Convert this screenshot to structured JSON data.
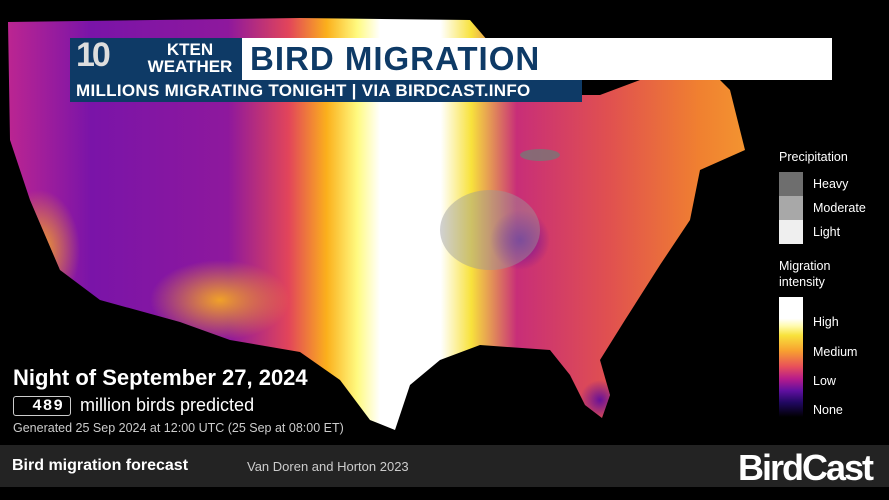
{
  "header": {
    "logo_number": "10",
    "logo_station": "KTEN",
    "logo_text_line1": "KTEN",
    "logo_text_line2": "WEATHER",
    "title": "BIRD MIGRATION",
    "subtitle": "MILLIONS MIGRATING TONIGHT | VIA BIRDCAST.INFO"
  },
  "forecast": {
    "night": "Night of September 27, 2024",
    "count": "489",
    "count_label": "million birds predicted",
    "generated": "Generated 25 Sep 2024 at 12:00 UTC (25 Sep at 08:00 ET)"
  },
  "legend": {
    "precip_title": "Precipitation",
    "precip": [
      {
        "label": "Heavy",
        "color": "#6e6e6e"
      },
      {
        "label": "Moderate",
        "color": "#a8a8a8"
      },
      {
        "label": "Light",
        "color": "#efefef"
      }
    ],
    "intensity_title_1": "Migration",
    "intensity_title_2": "intensity",
    "intensity": [
      "High",
      "Medium",
      "Low",
      "None"
    ]
  },
  "footer": {
    "title": "Bird migration forecast",
    "citation": "Van Doren and Horton 2023",
    "brand": "BirdCast"
  },
  "colors": {
    "banner_blue": "#0e3a66",
    "footer_bg": "#232323"
  }
}
